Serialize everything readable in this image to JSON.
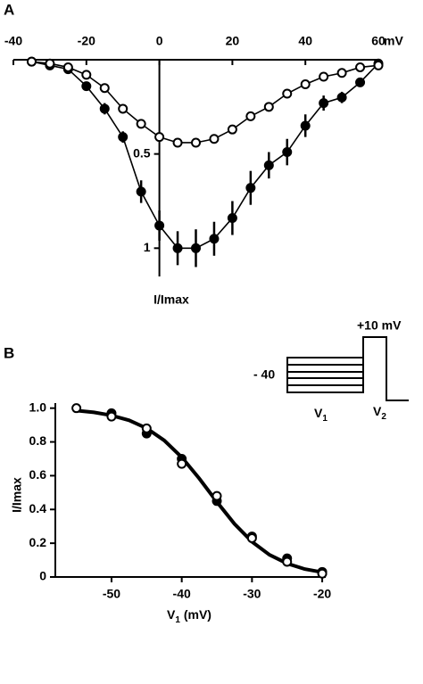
{
  "chart_data": [
    {
      "type": "line",
      "panel": "A",
      "xlabel": "mV",
      "ylabel": "I/Imax",
      "x": [
        -35,
        -30,
        -25,
        -20,
        -15,
        -10,
        -5,
        0,
        5,
        10,
        15,
        20,
        25,
        30,
        35,
        40,
        45,
        50,
        55,
        60
      ],
      "xlim": [
        -40,
        60
      ],
      "xticks": [
        -40,
        -20,
        0,
        20,
        40,
        60
      ],
      "ylim": [
        1.15,
        0
      ],
      "yticks": [
        0.5,
        1
      ],
      "series": [
        {
          "color": "#000000",
          "marker_fill": "#000000",
          "style": "line+marker",
          "values": [
            0.01,
            0.03,
            0.05,
            0.14,
            0.26,
            0.41,
            0.7,
            0.88,
            1.0,
            1.0,
            0.95,
            0.84,
            0.68,
            0.56,
            0.49,
            0.35,
            0.23,
            0.2,
            0.12,
            0.02
          ],
          "errors": [
            0,
            0,
            0,
            0.02,
            0.03,
            0.03,
            0.06,
            0.08,
            0.09,
            0.1,
            0.09,
            0.09,
            0.09,
            0.07,
            0.07,
            0.06,
            0.04,
            0.03,
            0.02,
            0.01
          ]
        },
        {
          "color": "#000000",
          "marker_fill": "#ffffff",
          "style": "line+marker",
          "values": [
            0.01,
            0.02,
            0.04,
            0.08,
            0.15,
            0.26,
            0.34,
            0.41,
            0.44,
            0.44,
            0.42,
            0.37,
            0.3,
            0.25,
            0.18,
            0.13,
            0.09,
            0.07,
            0.04,
            0.03
          ]
        }
      ]
    },
    {
      "type": "line",
      "panel": "B",
      "xlabel_parts": [
        "V",
        "1",
        " (mV)"
      ],
      "ylabel": "I/Imax",
      "xlim": [
        -58,
        -19.5
      ],
      "xticks": [
        -50,
        -40,
        -30,
        -20
      ],
      "ylim": [
        0,
        1.03
      ],
      "yticks": [
        0,
        0.2,
        0.4,
        0.6,
        0.8,
        {
          "value": 1,
          "label": "1.0"
        }
      ],
      "series": [
        {
          "color": "#000000",
          "style": "line",
          "x": [
            -55,
            -52.5,
            -50,
            -47.5,
            -45,
            -42.5,
            -40,
            -37.5,
            -35,
            -32.5,
            -30,
            -27.5,
            -25,
            -22.5,
            -20
          ],
          "values": [
            0.986,
            0.975,
            0.957,
            0.928,
            0.881,
            0.809,
            0.709,
            0.583,
            0.445,
            0.315,
            0.209,
            0.131,
            0.08,
            0.047,
            0.028
          ]
        },
        {
          "color": "#000000",
          "marker_fill": "#000000",
          "style": "marker",
          "x": [
            -50,
            -45,
            -40,
            -35,
            -30,
            -25,
            -20
          ],
          "values": [
            0.97,
            0.85,
            0.7,
            0.45,
            0.24,
            0.11,
            0.03
          ]
        },
        {
          "color": "#000000",
          "marker_fill": "#ffffff",
          "style": "marker",
          "x": [
            -55,
            -50,
            -45,
            -40,
            -35,
            -30,
            -25,
            -20
          ],
          "values": [
            1.0,
            0.95,
            0.88,
            0.67,
            0.48,
            0.23,
            0.09,
            0.02
          ]
        }
      ],
      "inset": {
        "pulse": "+10 mV",
        "holding": "- 40",
        "v1_parts": [
          "V",
          "1"
        ],
        "v2_parts": [
          "V",
          "2"
        ]
      }
    }
  ]
}
